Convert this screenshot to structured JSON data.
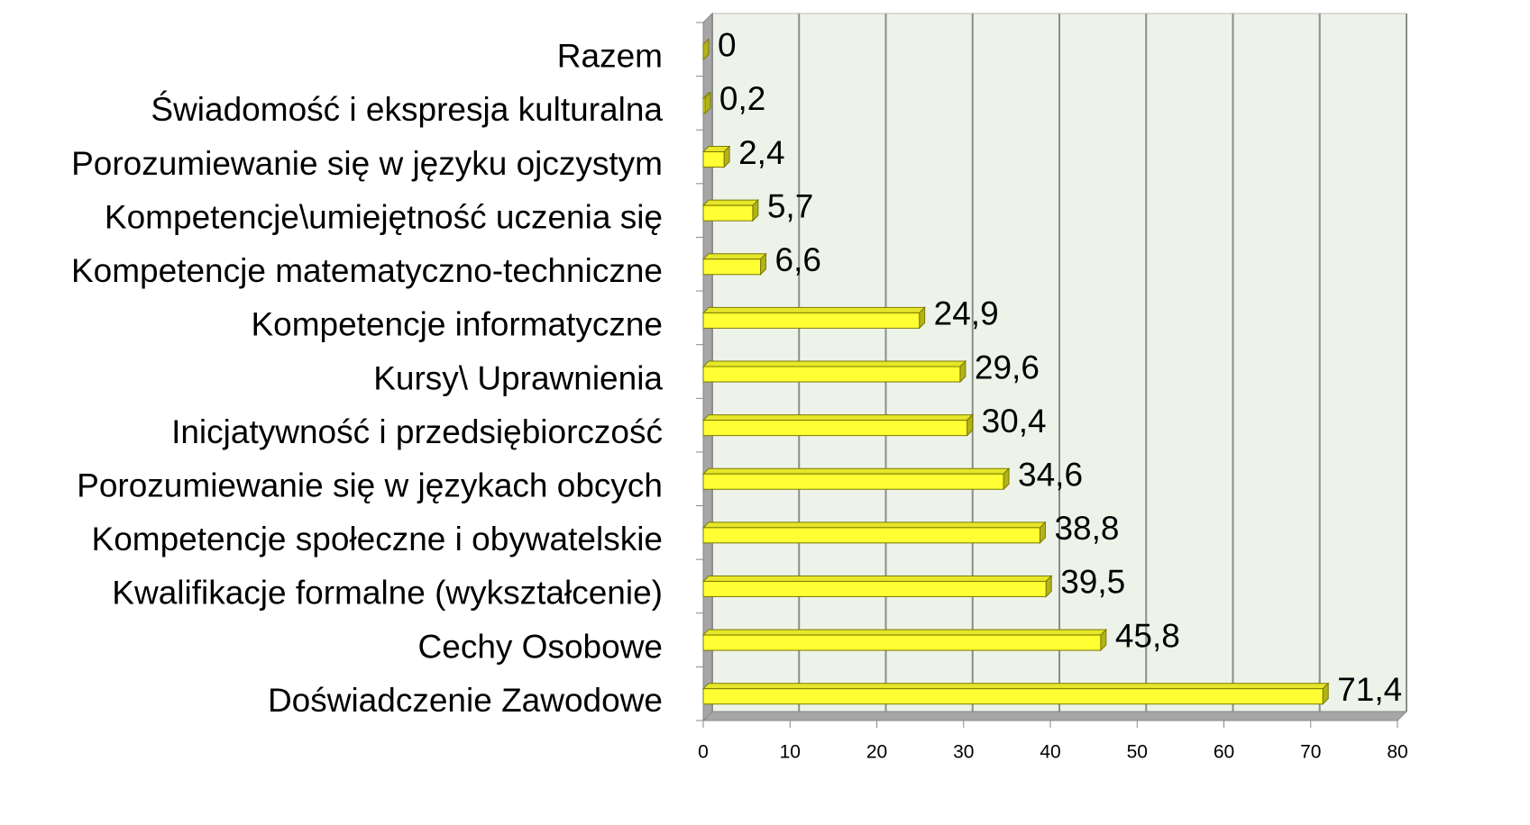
{
  "chart_data": {
    "type": "bar",
    "orientation": "horizontal",
    "categories": [
      "Razem",
      "Świadomość i ekspresja kulturalna",
      "Porozumiewanie się w języku ojczystym",
      "Kompetencje\\umiejętność uczenia się",
      "Kompetencje matematyczno-techniczne",
      "Kompetencje informatyczne",
      "Kursy\\ Uprawnienia",
      "Inicjatywność i przedsiębiorczość",
      "Porozumiewanie się w językach obcych",
      "Kompetencje społeczne i obywatelskie",
      "Kwalifikacje formalne (wykształcenie)",
      "Cechy Osobowe",
      "Doświadczenie Zawodowe"
    ],
    "values": [
      0,
      0.2,
      2.4,
      5.7,
      6.6,
      24.9,
      29.6,
      30.4,
      34.6,
      38.8,
      39.5,
      45.8,
      71.4
    ],
    "value_labels": [
      "0",
      "0,2",
      "2,4",
      "5,7",
      "6,6",
      "24,9",
      "29,6",
      "30,4",
      "34,6",
      "38,8",
      "39,5",
      "45,8",
      "71,4"
    ],
    "color": "#ffff33",
    "xlim": [
      0,
      80
    ],
    "xticks": [
      0,
      10,
      20,
      30,
      40,
      50,
      60,
      70,
      80
    ],
    "grid": true
  }
}
